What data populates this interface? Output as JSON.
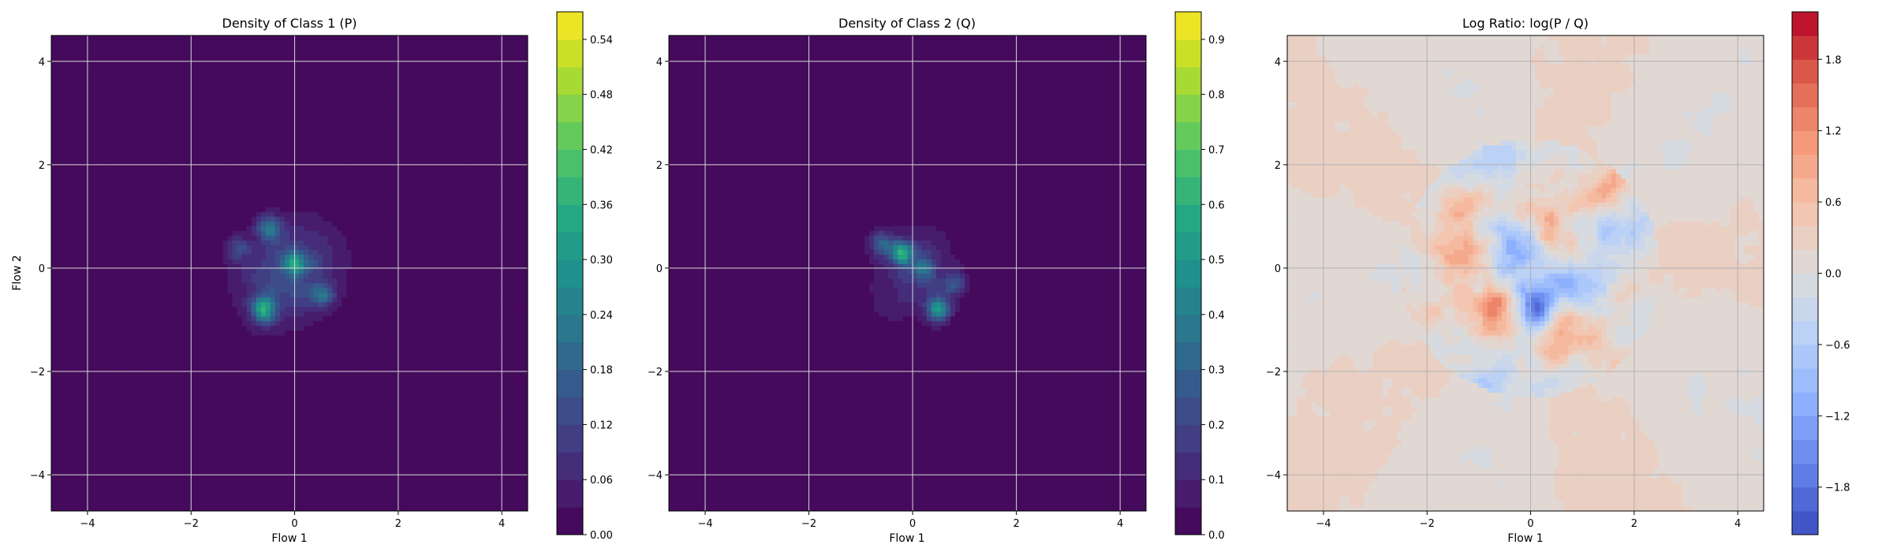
{
  "chart_data": [
    {
      "type": "heatmap",
      "title": "Density of Class 1 (P)",
      "xlabel": "Flow 1",
      "ylabel": "Flow 2",
      "xlim": [
        -4.7,
        4.5
      ],
      "ylim": [
        -4.7,
        4.5
      ],
      "xticks": [
        -4,
        -2,
        0,
        2,
        4
      ],
      "yticks": [
        -4,
        -2,
        0,
        2,
        4
      ],
      "xtick_labels": [
        "−4",
        "−2",
        "0",
        "2",
        "4"
      ],
      "ytick_labels": [
        "−4",
        "−2",
        "0",
        "2",
        "4"
      ],
      "grid": true,
      "colormap": "viridis",
      "colorbar": {
        "min": 0.0,
        "max": 0.57,
        "ticks": [
          0.0,
          0.06,
          0.12,
          0.18,
          0.24,
          0.3,
          0.36,
          0.42,
          0.48,
          0.54
        ],
        "tick_labels": [
          "0.00",
          "0.06",
          "0.12",
          "0.18",
          "0.24",
          "0.30",
          "0.36",
          "0.42",
          "0.48",
          "0.54"
        ],
        "levels": 19
      },
      "density_model": {
        "center": [
          -0.1,
          -0.1
        ],
        "spread": [
          0.95,
          1.15
        ],
        "rotation_deg": -40,
        "peak_value": 0.42,
        "hotspots": [
          {
            "x": -0.6,
            "y": -0.8,
            "value": 0.36
          },
          {
            "x": 0.0,
            "y": 0.1,
            "value": 0.3
          },
          {
            "x": -0.5,
            "y": 0.8,
            "value": 0.24
          },
          {
            "x": 0.5,
            "y": -0.5,
            "value": 0.2
          },
          {
            "x": -1.1,
            "y": 0.4,
            "value": 0.15
          }
        ]
      }
    },
    {
      "type": "heatmap",
      "title": "Density of Class 2 (Q)",
      "xlabel": "Flow 1",
      "ylabel": "",
      "xlim": [
        -4.7,
        4.5
      ],
      "ylim": [
        -4.7,
        4.5
      ],
      "xticks": [
        -4,
        -2,
        0,
        2,
        4
      ],
      "yticks": [
        -4,
        -2,
        0,
        2,
        4
      ],
      "xtick_labels": [
        "−4",
        "−2",
        "0",
        "2",
        "4"
      ],
      "ytick_labels": [
        "−4",
        "−2",
        "0",
        "2",
        "4"
      ],
      "grid": true,
      "colormap": "viridis",
      "colorbar": {
        "min": 0.0,
        "max": 0.95,
        "ticks": [
          0.0,
          0.1,
          0.2,
          0.3,
          0.4,
          0.5,
          0.6,
          0.7,
          0.8,
          0.9
        ],
        "tick_labels": [
          "0.0",
          "0.1",
          "0.2",
          "0.3",
          "0.4",
          "0.5",
          "0.6",
          "0.7",
          "0.8",
          "0.9"
        ],
        "levels": 19
      },
      "density_model": {
        "center": [
          0.0,
          -0.1
        ],
        "spread": [
          0.8,
          1.0
        ],
        "rotation_deg": -35,
        "peak_value": 0.5,
        "hotspots": [
          {
            "x": -0.2,
            "y": 0.3,
            "value": 0.55
          },
          {
            "x": 0.5,
            "y": -0.8,
            "value": 0.45
          },
          {
            "x": 0.2,
            "y": 0.0,
            "value": 0.3
          },
          {
            "x": -0.6,
            "y": 0.5,
            "value": 0.25
          },
          {
            "x": 0.8,
            "y": -0.3,
            "value": 0.25
          }
        ]
      }
    },
    {
      "type": "heatmap",
      "title": "Log Ratio: log(P / Q)",
      "xlabel": "Flow 1",
      "ylabel": "",
      "xlim": [
        -4.7,
        4.5
      ],
      "ylim": [
        -4.7,
        4.5
      ],
      "xticks": [
        -4,
        -2,
        0,
        2,
        4
      ],
      "yticks": [
        -4,
        -2,
        0,
        2,
        4
      ],
      "xtick_labels": [
        "−4",
        "−2",
        "0",
        "2",
        "4"
      ],
      "ytick_labels": [
        "−4",
        "−2",
        "0",
        "2",
        "4"
      ],
      "grid": true,
      "colormap": "coolwarm",
      "colorbar": {
        "min": -2.2,
        "max": 2.2,
        "ticks": [
          -1.8,
          -1.2,
          -0.6,
          0.0,
          0.6,
          1.2,
          1.8
        ],
        "tick_labels": [
          "−1.8",
          "−1.2",
          "−0.6",
          "0.0",
          "0.6",
          "1.2",
          "1.8"
        ],
        "levels": 22
      },
      "ratio_model": {
        "background_value": 0.05,
        "positive_spots": [
          {
            "x": -1.3,
            "y": 1.2,
            "value": 0.9
          },
          {
            "x": 0.1,
            "y": 1.0,
            "value": 0.8
          },
          {
            "x": -0.6,
            "y": -0.8,
            "value": 1.5
          },
          {
            "x": 0.5,
            "y": -1.3,
            "value": 1.0
          },
          {
            "x": 2.2,
            "y": -2.2,
            "value": 1.1
          },
          {
            "x": 1.5,
            "y": 1.6,
            "value": 0.6
          },
          {
            "x": -1.4,
            "y": 0.2,
            "value": 0.6
          }
        ],
        "negative_spots": [
          {
            "x": -0.3,
            "y": 0.4,
            "value": -1.2
          },
          {
            "x": 0.1,
            "y": -0.8,
            "value": -1.8
          },
          {
            "x": -0.6,
            "y": 2.2,
            "value": -0.8
          },
          {
            "x": 1.0,
            "y": -0.2,
            "value": -0.9
          },
          {
            "x": -0.8,
            "y": -2.2,
            "value": -0.7
          },
          {
            "x": 1.9,
            "y": 0.6,
            "value": -0.6
          },
          {
            "x": -2.2,
            "y": 1.5,
            "value": -0.5
          }
        ]
      }
    }
  ]
}
